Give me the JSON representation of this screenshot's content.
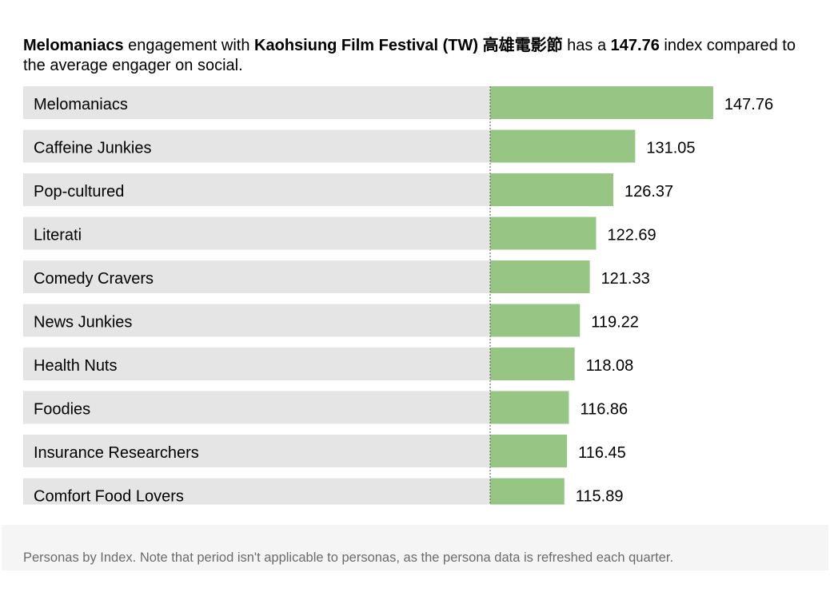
{
  "headline": {
    "segment_name": "Melomaniacs",
    "text_1": " engagement with ",
    "brand_name": "Kaohsiung Film Festival (TW) 高雄電影節",
    "text_2": " has a ",
    "index_value": "147.76",
    "text_3": " index compared to the average engager on social."
  },
  "chart_data": {
    "type": "bar",
    "orientation": "horizontal",
    "categories": [
      "Melomaniacs",
      "Caffeine Junkies",
      "Pop-cultured",
      "Literati",
      "Comedy Cravers",
      "News Junkies",
      "Health Nuts",
      "Foodies",
      "Insurance Researchers",
      "Comfort Food Lovers"
    ],
    "values": [
      147.76,
      131.05,
      126.37,
      122.69,
      121.33,
      119.22,
      118.08,
      116.86,
      116.45,
      115.89
    ],
    "value_labels": [
      "147.76",
      "131.05",
      "126.37",
      "122.69",
      "121.33",
      "119.22",
      "118.08",
      "116.86",
      "116.45",
      "115.89"
    ],
    "baseline": 100,
    "baseline_style": "dotted",
    "bar_color": "#96c584",
    "label_band_color": "#e5e5e5"
  },
  "footer": {
    "note": "Personas by Index. Note that period isn't applicable to personas, as the persona data is refreshed each quarter."
  }
}
